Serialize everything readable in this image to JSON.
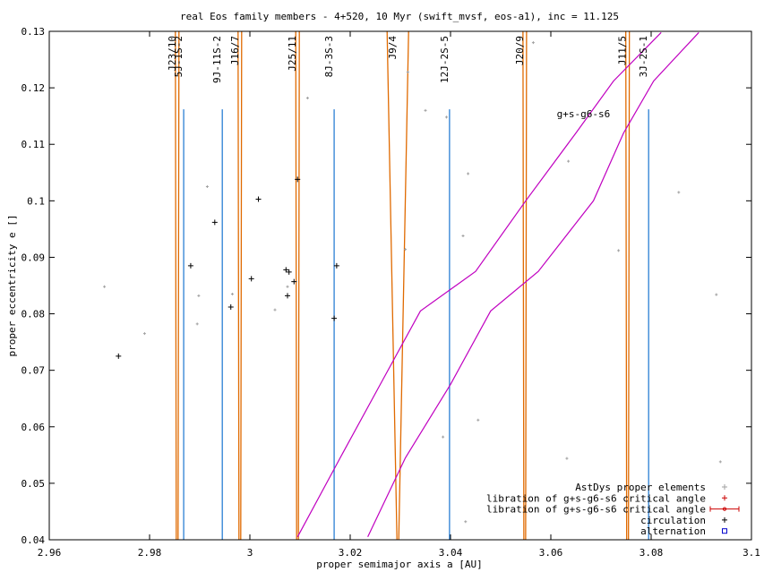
{
  "chart_data": {
    "type": "scatter",
    "title": "real Eos family members - 4+520, 10 Myr (swift_mvsf, eos-a1), inc = 11.125",
    "xlabel": "proper semimajor axis a [AU]",
    "ylabel": "proper eccentricity e []",
    "xlim": [
      2.96,
      3.1
    ],
    "ylim": [
      0.04,
      0.13
    ],
    "xticks": [
      "2.96",
      "2.98",
      "3",
      "3.02",
      "3.04",
      "3.06",
      "3.08",
      "3.1"
    ],
    "xtick_values": [
      2.96,
      2.98,
      3.0,
      3.02,
      3.04,
      3.06,
      3.08,
      3.1
    ],
    "yticks": [
      "0.04",
      "0.05",
      "0.06",
      "0.07",
      "0.08",
      "0.09",
      "0.1",
      "0.11",
      "0.12",
      "0.13"
    ],
    "ytick_values": [
      0.04,
      0.05,
      0.06,
      0.07,
      0.08,
      0.09,
      0.1,
      0.11,
      0.12,
      0.13
    ],
    "grid": false,
    "legend_position": "bottom-right",
    "colors": {
      "axes": "#000000",
      "astdys": "#a0a0a0",
      "libration": "#cc0000",
      "circulation": "#000000",
      "alternation": "#0000cc",
      "mean_motion_resonance": "#e06a00",
      "three_body_resonance": "#2a7fd4",
      "secular_resonance": "#c000c0"
    },
    "series": [
      {
        "name": "AstDys proper elements",
        "marker": "+",
        "color": "#a0a0a0",
        "points": [
          [
            2.971,
            0.0848
          ],
          [
            2.979,
            0.0765
          ],
          [
            2.9895,
            0.0782
          ],
          [
            2.9898,
            0.0832
          ],
          [
            2.9915,
            0.1025
          ],
          [
            2.9965,
            0.0835
          ],
          [
            3.005,
            0.0807
          ],
          [
            3.0075,
            0.0848
          ],
          [
            3.0115,
            0.1182
          ],
          [
            3.031,
            0.0914
          ],
          [
            3.0315,
            0.1228
          ],
          [
            3.035,
            0.116
          ],
          [
            3.0385,
            0.0582
          ],
          [
            3.0392,
            0.1148
          ],
          [
            3.0425,
            0.0938
          ],
          [
            3.043,
            0.0432
          ],
          [
            3.0435,
            0.1048
          ],
          [
            3.0455,
            0.0612
          ],
          [
            3.0565,
            0.128
          ],
          [
            3.0632,
            0.0544
          ],
          [
            3.0635,
            0.107
          ],
          [
            3.0735,
            0.0912
          ],
          [
            3.0855,
            0.1015
          ],
          [
            3.093,
            0.0834
          ],
          [
            3.0938,
            0.0538
          ]
        ]
      },
      {
        "name": "libration of g+s-g6-s6 critical angle",
        "marker": "+",
        "color": "#cc0000",
        "points": []
      },
      {
        "name": "libration of g+s-g6-s6 critical angle",
        "marker": "errorbar",
        "color": "#cc0000",
        "points": []
      },
      {
        "name": "circulation",
        "marker": "+",
        "color": "#000000",
        "points": [
          [
            2.9738,
            0.0725
          ],
          [
            2.9882,
            0.0885
          ],
          [
            2.993,
            0.0962
          ],
          [
            2.9962,
            0.0812
          ],
          [
            3.0003,
            0.0862
          ],
          [
            3.0017,
            0.1003
          ],
          [
            3.0072,
            0.0878
          ],
          [
            3.0075,
            0.0832
          ],
          [
            3.0078,
            0.0874
          ],
          [
            3.0088,
            0.0857
          ],
          [
            3.0095,
            0.1038
          ],
          [
            3.0168,
            0.0792
          ],
          [
            3.0173,
            0.0885
          ]
        ]
      },
      {
        "name": "alternation",
        "marker": "square",
        "color": "#0000cc",
        "points": []
      }
    ],
    "resonances": {
      "mean_motion": [
        {
          "label": "J23/10",
          "a": 2.9855
        },
        {
          "label": "J16/7",
          "a": 2.998
        },
        {
          "label": "J25/11",
          "a": 3.0095
        },
        {
          "label": "J9/4",
          "a": 3.0295
        },
        {
          "label": "J20/9",
          "a": 3.0548
        },
        {
          "label": "J11/5",
          "a": 3.0753
        }
      ],
      "three_body": [
        {
          "label": "5J-1S-2",
          "a": 2.9868
        },
        {
          "label": "9J-11S-2",
          "a": 2.9945
        },
        {
          "label": "8J-3S-3",
          "a": 3.0168
        },
        {
          "label": "12J-2S-5",
          "a": 3.0398
        },
        {
          "label": "3J-2S-1",
          "a": 3.0795
        }
      ],
      "secular": {
        "label": "g+s-g6-s6",
        "curves": [
          [
            [
              3.0095,
              0.0405
            ],
            [
              3.018,
              0.0545
            ],
            [
              3.026,
              0.0675
            ],
            [
              3.034,
              0.0805
            ],
            [
              3.045,
              0.0875
            ],
            [
              3.055,
              0.1
            ],
            [
              3.065,
              0.112
            ],
            [
              3.0725,
              0.1212
            ],
            [
              3.082,
              0.1298
            ]
          ],
          [
            [
              3.0235,
              0.0405
            ],
            [
              3.031,
              0.0545
            ],
            [
              3.04,
              0.0675
            ],
            [
              3.048,
              0.0805
            ],
            [
              3.0575,
              0.0875
            ],
            [
              3.0685,
              0.1
            ],
            [
              3.0745,
              0.112
            ],
            [
              3.0805,
              0.1212
            ],
            [
              3.0895,
              0.1298
            ]
          ]
        ]
      }
    }
  }
}
